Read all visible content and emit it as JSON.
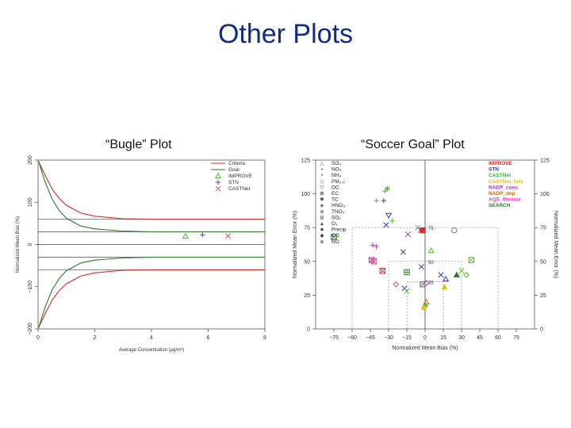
{
  "slide_title": "Other Plots",
  "plot_titles": {
    "left": "“Bugle” Plot",
    "right": "“Soccer Goal” Plot"
  },
  "colors": {
    "title": "#0e2a8a",
    "criteria": "#d42a2a",
    "goal": "#2a7a2a",
    "improve": "#55bb33",
    "stn": "#4444cc",
    "castnet": "#cc5577"
  },
  "chart_data": [
    {
      "type": "line",
      "xlabel": "Average Concentration (μg/m³)",
      "ylabel": "Normalized Mean Bias (%)",
      "xlim": [
        0,
        8
      ],
      "ylim": [
        -200,
        200
      ],
      "xticks": [
        0,
        2,
        4,
        6,
        8
      ],
      "yticks": [
        -200,
        -100,
        0,
        100,
        200
      ],
      "grid": false,
      "legend": {
        "position": "top-right",
        "entries": [
          {
            "label": "Criteria",
            "marker": "line",
            "color": "#d42a2a"
          },
          {
            "label": "Goal",
            "marker": "line",
            "color": "#2a7a2a"
          },
          {
            "label": "IMPROVE",
            "marker": "△",
            "color": "#55bb33"
          },
          {
            "label": "STN",
            "marker": "+",
            "color": "#4444cc"
          },
          {
            "label": "CASTNet",
            "marker": "×",
            "color": "#cc5577"
          }
        ]
      },
      "reference_lines": [
        -60,
        -30,
        0,
        30,
        60
      ],
      "series": [
        {
          "name": "Criteria",
          "color": "#d42a2a",
          "x": [
            0.02,
            0.25,
            0.5,
            0.75,
            1,
            1.5,
            2,
            3,
            4,
            6,
            8
          ],
          "y": [
            197,
            164,
            131,
            109,
            93,
            75,
            67,
            61,
            60,
            60,
            60
          ]
        },
        {
          "name": "Goal",
          "color": "#2a7a2a",
          "x": [
            0.02,
            0.25,
            0.5,
            0.75,
            1,
            1.5,
            2,
            3,
            4,
            6,
            8
          ],
          "y": [
            197,
            148,
            107,
            80,
            62,
            44,
            37,
            32,
            30,
            30,
            30
          ]
        },
        {
          "name": "IMPROVE",
          "color": "#55bb33",
          "marker": "triangle",
          "points": [
            [
              5.2,
              20
            ]
          ]
        },
        {
          "name": "STN",
          "color": "#4444cc",
          "marker": "plus",
          "points": [
            [
              5.8,
              23
            ]
          ]
        },
        {
          "name": "CASTNet",
          "color": "#cc5577",
          "marker": "cross",
          "points": [
            [
              6.7,
              20
            ]
          ]
        }
      ]
    },
    {
      "type": "scatter",
      "xlabel": "Normalized Mean Bias (%)",
      "ylabel": "Normalized Mean Error (%)",
      "xlim": [
        -90,
        90
      ],
      "ylim": [
        0,
        125
      ],
      "xticks": [
        -75,
        -60,
        -45,
        -30,
        -15,
        0,
        15,
        30,
        45,
        60,
        75
      ],
      "yticks": [
        0,
        25,
        50,
        75,
        100,
        125
      ],
      "grid": false,
      "goal_boxes": [
        {
          "bias_limit": 60,
          "error_limit": 75
        },
        {
          "bias_limit": 30,
          "error_limit": 50
        },
        {
          "bias_limit": 15,
          "error_limit": 35
        }
      ],
      "species_legend": {
        "position": "top-left",
        "entries": [
          {
            "label": "SO₄",
            "marker": "△"
          },
          {
            "label": "NO₃",
            "marker": "+"
          },
          {
            "label": "NH₄",
            "marker": "×"
          },
          {
            "label": "PM₂.₅",
            "marker": "◇"
          },
          {
            "label": "OC",
            "marker": "▽"
          },
          {
            "label": "EC",
            "marker": "⊠"
          },
          {
            "label": "TC",
            "marker": "✱"
          },
          {
            "label": "HNO₃",
            "marker": "◈"
          },
          {
            "label": "TNO₃",
            "marker": "⊕"
          },
          {
            "label": "SO₂",
            "marker": "⊞"
          },
          {
            "label": "O₃",
            "marker": "▲"
          },
          {
            "label": "Precip",
            "marker": "■"
          },
          {
            "label": "CO",
            "marker": "◆"
          },
          {
            "label": "NO",
            "marker": "⊗"
          }
        ]
      },
      "network_legend": {
        "position": "top-right",
        "entries": [
          {
            "label": "IMPROVE",
            "color": "#d42a2a"
          },
          {
            "label": "STN",
            "color": "#3333cc"
          },
          {
            "label": "CASTNet",
            "color": "#33bb33"
          },
          {
            "label": "CASTNet_hrly",
            "color": "#e0c020"
          },
          {
            "label": "NADP_conc",
            "color": "#aa33cc"
          },
          {
            "label": "NADP_dep",
            "color": "#cc6600"
          },
          {
            "label": "AQS_8hrmax",
            "color": "#dd44aa"
          },
          {
            "label": "SEARCH",
            "color": "#2a7a2a"
          }
        ]
      },
      "points": [
        {
          "x": -33,
          "y": 102,
          "marker": "plus",
          "color": "#55bb33"
        },
        {
          "x": -31,
          "y": 104,
          "marker": "asterisk",
          "color": "#55bb33"
        },
        {
          "x": -34,
          "y": 95,
          "marker": "plus",
          "color": "#3333cc"
        },
        {
          "x": -40,
          "y": 95,
          "marker": "plus",
          "color": "#8888cc"
        },
        {
          "x": -30,
          "y": 84,
          "marker": "tri_down",
          "color": "#3333cc"
        },
        {
          "x": -27,
          "y": 80,
          "marker": "plus",
          "color": "#55bb33"
        },
        {
          "x": -32,
          "y": 77,
          "marker": "cross",
          "color": "#3333cc"
        },
        {
          "x": -14,
          "y": 70,
          "marker": "cross",
          "color": "#aa33cc"
        },
        {
          "x": -6,
          "y": 75,
          "marker": "cross",
          "color": "#8888cc"
        },
        {
          "x": -4,
          "y": 73,
          "marker": "cross",
          "color": "#cc5577"
        },
        {
          "x": -2,
          "y": 73,
          "marker": "square",
          "color": "#d42a2a"
        },
        {
          "x": 24,
          "y": 73,
          "marker": "circle",
          "color": "#777777"
        },
        {
          "x": -75,
          "y": 68,
          "marker": "boxx",
          "color": "#2a7a2a"
        },
        {
          "x": -43,
          "y": 62,
          "marker": "plus",
          "color": "#aa33cc"
        },
        {
          "x": -40,
          "y": 61,
          "marker": "plus",
          "color": "#aa33cc"
        },
        {
          "x": -18,
          "y": 57,
          "marker": "cross",
          "color": "#3333cc"
        },
        {
          "x": 5,
          "y": 58,
          "marker": "triangle",
          "color": "#55bb33"
        },
        {
          "x": -44,
          "y": 51,
          "marker": "boxx",
          "color": "#aa33cc"
        },
        {
          "x": -42,
          "y": 50,
          "marker": "boxx",
          "color": "#cc5577"
        },
        {
          "x": -35,
          "y": 43,
          "marker": "boxx",
          "color": "#d42a2a"
        },
        {
          "x": -15,
          "y": 42,
          "marker": "boxplus",
          "color": "#2a7a2a"
        },
        {
          "x": -3,
          "y": 46,
          "marker": "cross",
          "color": "#3333cc"
        },
        {
          "x": 38,
          "y": 51,
          "marker": "boxx",
          "color": "#55bb33"
        },
        {
          "x": 30,
          "y": 43,
          "marker": "cross",
          "color": "#55bb33"
        },
        {
          "x": 34,
          "y": 40,
          "marker": "diamond",
          "color": "#55bb33"
        },
        {
          "x": 26,
          "y": 40,
          "marker": "tri_fill",
          "color": "#2a7a2a"
        },
        {
          "x": 13,
          "y": 40,
          "marker": "cross",
          "color": "#3333cc"
        },
        {
          "x": 17,
          "y": 37,
          "marker": "triangle",
          "color": "#3333cc"
        },
        {
          "x": -24,
          "y": 33,
          "marker": "diamond",
          "color": "#cc5577"
        },
        {
          "x": -17,
          "y": 30,
          "marker": "cross",
          "color": "#3333cc"
        },
        {
          "x": -15,
          "y": 28,
          "marker": "cross",
          "color": "#55bb33"
        },
        {
          "x": 1,
          "y": 34,
          "marker": "diamond",
          "color": "#aa33cc"
        },
        {
          "x": -2,
          "y": 33,
          "marker": "boxx",
          "color": "#777777"
        },
        {
          "x": 16,
          "y": 31,
          "marker": "tri_fill",
          "color": "#e0c020"
        },
        {
          "x": 0,
          "y": 18,
          "marker": "tri_fill",
          "color": "#55bb33"
        },
        {
          "x": 1,
          "y": 20,
          "marker": "triangle",
          "color": "#cc6600"
        },
        {
          "x": -1,
          "y": 16,
          "marker": "tri_fill",
          "color": "#e0c020"
        }
      ]
    }
  ]
}
